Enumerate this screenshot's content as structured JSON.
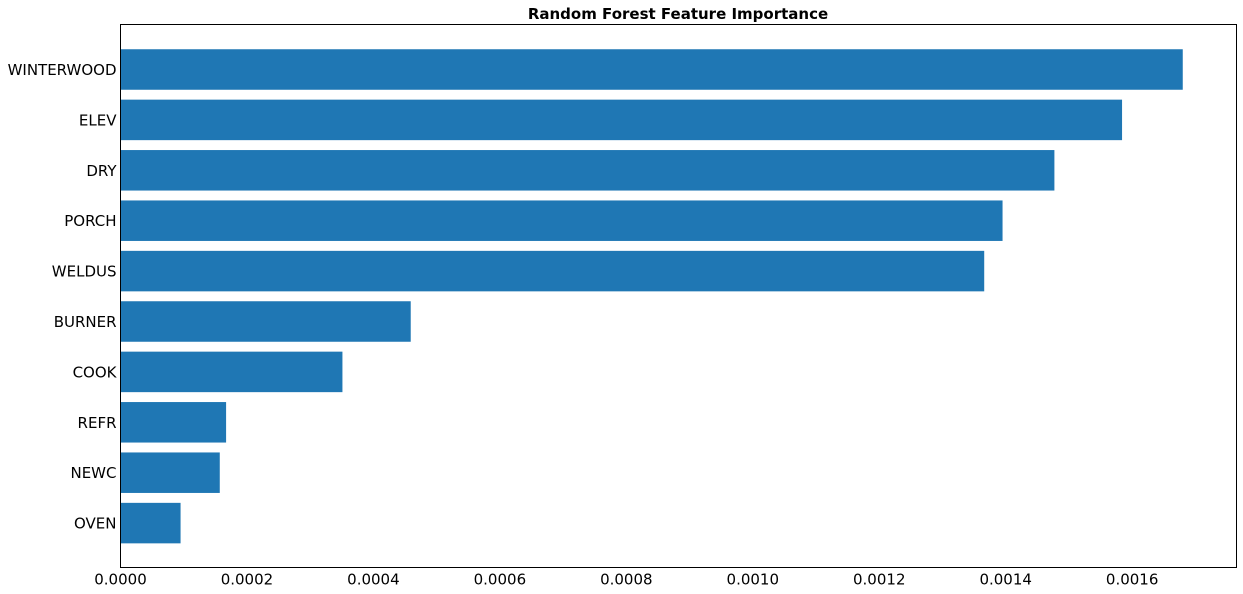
{
  "chart_data": {
    "type": "bar",
    "orientation": "horizontal",
    "title": "Random Forest Feature Importance",
    "xlabel": "",
    "ylabel": "",
    "categories": [
      "WINTERWOOD",
      "ELEV",
      "DRY",
      "PORCH",
      "WELDUS",
      "BURNER",
      "COOK",
      "REFR",
      "NEWC",
      "OVEN"
    ],
    "values": [
      0.00168,
      0.001584,
      0.001477,
      0.001395,
      0.001366,
      0.000459,
      0.000351,
      0.000167,
      0.000157,
      9.5e-05
    ],
    "xlim": [
      0,
      0.001765
    ],
    "xticks": [
      "0.0000",
      "0.0002",
      "0.0004",
      "0.0006",
      "0.0008",
      "0.0010",
      "0.0012",
      "0.0014",
      "0.0016"
    ],
    "grid": false,
    "bar_color": "#1f77b4"
  }
}
